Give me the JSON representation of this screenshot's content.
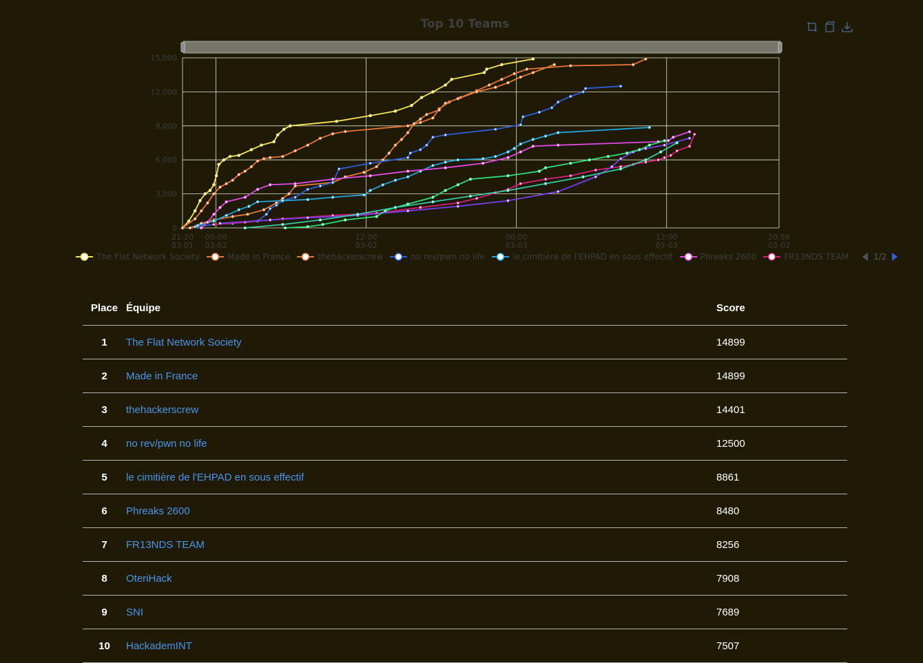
{
  "chart_data": {
    "type": "line",
    "title": "Top 10 Teams",
    "y_ticks": [
      "0",
      "3,000",
      "6,000",
      "9,000",
      "12,000",
      "15,000"
    ],
    "ylim": [
      0,
      15000
    ],
    "x_ticks": [
      {
        "time": "21:20",
        "date": "03-01"
      },
      {
        "time": "00:00",
        "date": "03-02"
      },
      {
        "time": "12:00",
        "date": "03-02"
      },
      {
        "time": "00:00",
        "date": "03-03"
      },
      {
        "time": "12:00",
        "date": "03-03"
      },
      {
        "time": "20:59",
        "date": "03-03"
      }
    ],
    "grid": true,
    "legend_page": "1/2",
    "series": [
      {
        "name": "The Flat Network Society",
        "color": "#f5e45a",
        "points": [
          [
            0,
            0
          ],
          [
            0.5,
            600
          ],
          [
            1,
            1500
          ],
          [
            1.4,
            2400
          ],
          [
            1.8,
            3000
          ],
          [
            2.2,
            3300
          ],
          [
            2.5,
            3800
          ],
          [
            2.7,
            4600
          ],
          [
            2.9,
            5600
          ],
          [
            3.3,
            6000
          ],
          [
            3.8,
            6300
          ],
          [
            4.5,
            6400
          ],
          [
            5.5,
            6900
          ],
          [
            6.3,
            7300
          ],
          [
            7.3,
            7600
          ],
          [
            7.6,
            8200
          ],
          [
            8.1,
            8700
          ],
          [
            8.6,
            9000
          ],
          [
            12.3,
            9400
          ],
          [
            15,
            9900
          ],
          [
            17,
            10300
          ],
          [
            18.3,
            10800
          ],
          [
            19.1,
            11500
          ],
          [
            20,
            12000
          ],
          [
            21,
            12600
          ],
          [
            21.5,
            13100
          ],
          [
            24.1,
            13700
          ],
          [
            24.3,
            14000
          ],
          [
            25.5,
            14400
          ],
          [
            28,
            14899
          ]
        ]
      },
      {
        "name": "Made in France",
        "color": "#e8743a",
        "points": [
          [
            0,
            0
          ],
          [
            1,
            800
          ],
          [
            1.5,
            1500
          ],
          [
            2,
            2200
          ],
          [
            2.5,
            3000
          ],
          [
            3,
            3600
          ],
          [
            3.5,
            3900
          ],
          [
            4,
            4200
          ],
          [
            4.5,
            4700
          ],
          [
            5,
            5000
          ],
          [
            5.5,
            5400
          ],
          [
            6,
            5900
          ],
          [
            6.5,
            6100
          ],
          [
            7,
            6200
          ],
          [
            8,
            6300
          ],
          [
            9,
            6800
          ],
          [
            10,
            7300
          ],
          [
            11,
            7900
          ],
          [
            12,
            8300
          ],
          [
            13,
            8500
          ],
          [
            18,
            9000
          ],
          [
            19,
            9300
          ],
          [
            20,
            9700
          ],
          [
            20.5,
            10500
          ],
          [
            21.3,
            11100
          ],
          [
            22.2,
            11500
          ],
          [
            23.5,
            12100
          ],
          [
            24.5,
            12600
          ],
          [
            25.5,
            13100
          ],
          [
            26.5,
            13600
          ],
          [
            27.5,
            14000
          ],
          [
            31,
            14300
          ],
          [
            36,
            14400
          ],
          [
            37,
            14899
          ]
        ]
      },
      {
        "name": "thehackerscrew",
        "color": "#e47a3c",
        "points": [
          [
            0.6,
            0
          ],
          [
            1.5,
            400
          ],
          [
            2.5,
            700
          ],
          [
            4,
            1000
          ],
          [
            5.2,
            1200
          ],
          [
            6.5,
            1600
          ],
          [
            7.5,
            2200
          ],
          [
            8,
            2600
          ],
          [
            8.5,
            3000
          ],
          [
            9,
            3700
          ],
          [
            12,
            4000
          ],
          [
            13,
            4500
          ],
          [
            14.5,
            4900
          ],
          [
            15.5,
            5400
          ],
          [
            16,
            6000
          ],
          [
            16.5,
            6600
          ],
          [
            17,
            7300
          ],
          [
            17.5,
            7800
          ],
          [
            18,
            8400
          ],
          [
            18.5,
            9200
          ],
          [
            19,
            9600
          ],
          [
            19.5,
            10000
          ],
          [
            20.5,
            10400
          ],
          [
            21,
            11000
          ],
          [
            22,
            11400
          ],
          [
            23.5,
            12000
          ],
          [
            25,
            12400
          ],
          [
            26,
            12800
          ],
          [
            27,
            13300
          ],
          [
            28,
            13700
          ],
          [
            29.7,
            14401
          ]
        ]
      },
      {
        "name": "no rev/pwn no life",
        "color": "#2f5fd6",
        "points": [
          [
            1,
            100
          ],
          [
            2.5,
            300
          ],
          [
            4,
            400
          ],
          [
            5,
            500
          ],
          [
            6,
            600
          ],
          [
            6.7,
            1200
          ],
          [
            7,
            1700
          ],
          [
            7.5,
            2000
          ],
          [
            8,
            2400
          ],
          [
            9,
            2700
          ],
          [
            10,
            3400
          ],
          [
            11,
            3700
          ],
          [
            12,
            4000
          ],
          [
            12.5,
            5200
          ],
          [
            15,
            5700
          ],
          [
            18,
            6200
          ],
          [
            18.2,
            6600
          ],
          [
            19,
            6900
          ],
          [
            19.5,
            7300
          ],
          [
            20,
            8000
          ],
          [
            21,
            8200
          ],
          [
            25,
            8700
          ],
          [
            27,
            9100
          ],
          [
            27.2,
            9800
          ],
          [
            28.5,
            10200
          ],
          [
            29.5,
            10600
          ],
          [
            30,
            11100
          ],
          [
            31,
            11600
          ],
          [
            32,
            12000
          ],
          [
            32.2,
            12300
          ],
          [
            35,
            12500
          ]
        ]
      },
      {
        "name": "le cimitière de l'EHPAD en sous effectif",
        "color": "#26a3d8",
        "points": [
          [
            1.2,
            200
          ],
          [
            2.5,
            600
          ],
          [
            3.5,
            1100
          ],
          [
            4.5,
            1600
          ],
          [
            5.3,
            1900
          ],
          [
            6,
            2300
          ],
          [
            8,
            2400
          ],
          [
            10,
            2500
          ],
          [
            12,
            2700
          ],
          [
            14.5,
            2900
          ],
          [
            15,
            3300
          ],
          [
            16,
            3800
          ],
          [
            17,
            4200
          ],
          [
            18,
            4500
          ],
          [
            19,
            5000
          ],
          [
            20,
            5500
          ],
          [
            21,
            5800
          ],
          [
            22,
            6000
          ],
          [
            24,
            6100
          ],
          [
            25,
            6300
          ],
          [
            26,
            6700
          ],
          [
            26.5,
            7000
          ],
          [
            27,
            7400
          ],
          [
            28,
            7800
          ],
          [
            29,
            8100
          ],
          [
            30,
            8400
          ],
          [
            37.3,
            8861
          ]
        ]
      },
      {
        "name": "Phreaks 2600",
        "color": "#e04ae0",
        "points": [
          [
            1.5,
            0
          ],
          [
            2,
            500
          ],
          [
            2.5,
            1200
          ],
          [
            3,
            1800
          ],
          [
            3.5,
            2300
          ],
          [
            5,
            2700
          ],
          [
            6,
            3400
          ],
          [
            7,
            3800
          ],
          [
            9,
            3900
          ],
          [
            12,
            4300
          ],
          [
            15,
            4600
          ],
          [
            18,
            5000
          ],
          [
            21,
            5300
          ],
          [
            24,
            5700
          ],
          [
            26,
            6200
          ],
          [
            27,
            6700
          ],
          [
            28,
            7200
          ],
          [
            30,
            7300
          ],
          [
            38,
            7600
          ],
          [
            38.8,
            7700
          ],
          [
            39.2,
            8000
          ],
          [
            40.5,
            8480
          ]
        ]
      },
      {
        "name": "FR13NDS TEAM",
        "color": "#d21f78",
        "points": [
          [
            2.5,
            300
          ],
          [
            5,
            500
          ],
          [
            8,
            800
          ],
          [
            12,
            1100
          ],
          [
            15.5,
            1300
          ],
          [
            19,
            1800
          ],
          [
            22,
            2200
          ],
          [
            23.5,
            2600
          ],
          [
            25,
            3100
          ],
          [
            26,
            3400
          ],
          [
            27,
            3900
          ],
          [
            29,
            4300
          ],
          [
            31,
            4600
          ],
          [
            33,
            5100
          ],
          [
            35,
            5400
          ],
          [
            36,
            5600
          ],
          [
            37,
            5800
          ],
          [
            38,
            6000
          ],
          [
            38.5,
            6200
          ],
          [
            39,
            6400
          ],
          [
            39.5,
            6800
          ],
          [
            40.5,
            7200
          ],
          [
            40.9,
            8256
          ]
        ]
      },
      {
        "name": "OteriHack",
        "color": "#7a3ee8",
        "points": [
          [
            3,
            400
          ],
          [
            7,
            700
          ],
          [
            10,
            900
          ],
          [
            14,
            1100
          ],
          [
            18,
            1500
          ],
          [
            22,
            1900
          ],
          [
            26,
            2400
          ],
          [
            30,
            3200
          ],
          [
            33,
            4500
          ],
          [
            34.3,
            5400
          ],
          [
            35,
            6100
          ],
          [
            36,
            6700
          ],
          [
            37,
            7000
          ],
          [
            38.5,
            7300
          ],
          [
            40.5,
            7908
          ]
        ]
      },
      {
        "name": "SNI",
        "color": "#2ee07a",
        "points": [
          [
            8.2,
            0
          ],
          [
            10,
            100
          ],
          [
            11.2,
            300
          ],
          [
            13,
            700
          ],
          [
            15.5,
            1000
          ],
          [
            16.2,
            1500
          ],
          [
            17,
            1800
          ],
          [
            18,
            2100
          ],
          [
            20,
            2700
          ],
          [
            21,
            3300
          ],
          [
            22,
            3800
          ],
          [
            23,
            4300
          ],
          [
            26,
            4600
          ],
          [
            28.5,
            5000
          ],
          [
            29,
            5300
          ],
          [
            31,
            5700
          ],
          [
            32.5,
            6000
          ],
          [
            34,
            6300
          ],
          [
            35.5,
            6600
          ],
          [
            36.5,
            6900
          ],
          [
            37.3,
            7300
          ],
          [
            38.5,
            7689
          ]
        ]
      },
      {
        "name": "HackademINT",
        "color": "#38c9a8",
        "points": [
          [
            5,
            0
          ],
          [
            8,
            300
          ],
          [
            11,
            700
          ],
          [
            14,
            1200
          ],
          [
            17,
            1800
          ],
          [
            20,
            2300
          ],
          [
            23,
            2800
          ],
          [
            26,
            3300
          ],
          [
            29,
            3900
          ],
          [
            32,
            4500
          ],
          [
            35,
            5200
          ],
          [
            37,
            6000
          ],
          [
            38.2,
            6700
          ],
          [
            39.5,
            7507
          ]
        ]
      }
    ]
  },
  "table": {
    "headers": {
      "place": "Place",
      "team": "Équipe",
      "score": "Score"
    },
    "rows": [
      {
        "place": "1",
        "team": "The Flat Network Society",
        "score": "14899"
      },
      {
        "place": "2",
        "team": "Made in France",
        "score": "14899"
      },
      {
        "place": "3",
        "team": "thehackerscrew",
        "score": "14401"
      },
      {
        "place": "4",
        "team": "no rev/pwn no life",
        "score": "12500"
      },
      {
        "place": "5",
        "team": "le cimitière de l'EHPAD en sous effectif",
        "score": "8861"
      },
      {
        "place": "6",
        "team": "Phreaks 2600",
        "score": "8480"
      },
      {
        "place": "7",
        "team": "FR13NDS TEAM",
        "score": "8256"
      },
      {
        "place": "8",
        "team": "OteriHack",
        "score": "7908"
      },
      {
        "place": "9",
        "team": "SNI",
        "score": "7689"
      },
      {
        "place": "10",
        "team": "HackademINT",
        "score": "7507"
      }
    ]
  },
  "toolbox": {
    "icons": [
      "zoom-icon",
      "zoom-reset-icon",
      "download-icon"
    ]
  }
}
